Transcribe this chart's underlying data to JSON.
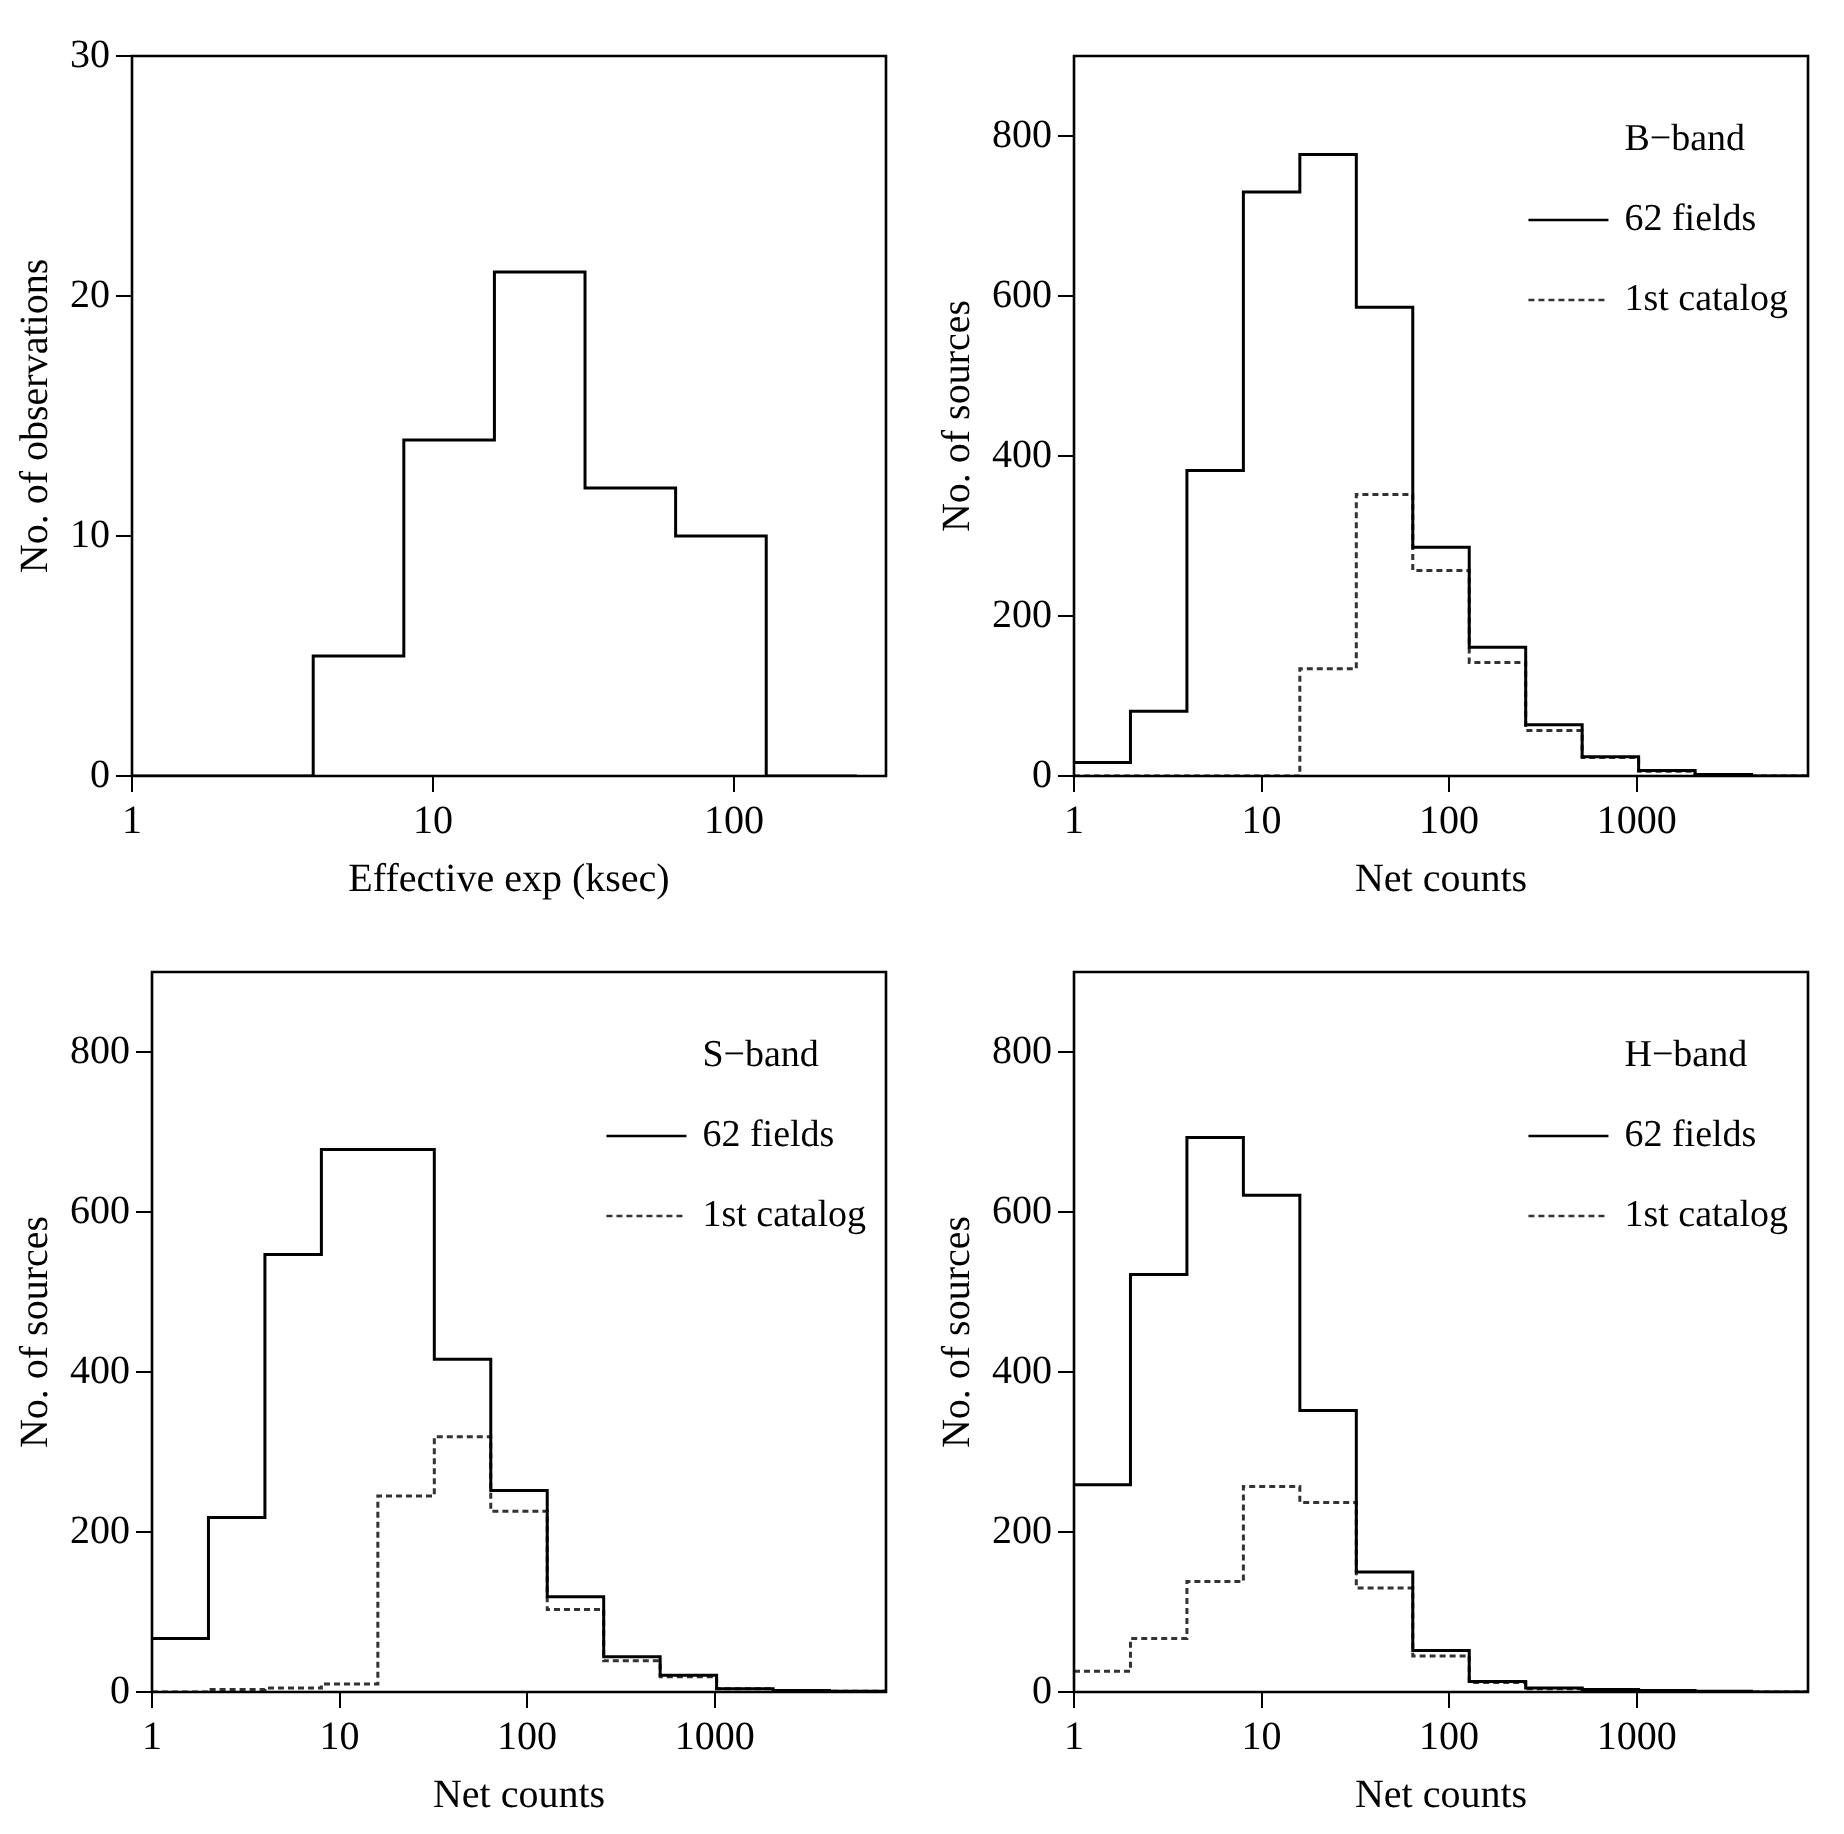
{
  "chart_data": [
    {
      "type": "histogram",
      "xlabel": "Effective exp (ksec)",
      "ylabel": "No. of observations",
      "log": "x",
      "xlim": [
        1,
        320
      ],
      "xticks": [
        1,
        10,
        100
      ],
      "ylim": [
        0,
        30
      ],
      "yticks": [
        0,
        10,
        20,
        30
      ],
      "bins": [
        1,
        2,
        4,
        8,
        16,
        32,
        64,
        128,
        256
      ],
      "values": [
        0,
        0,
        5,
        14,
        21,
        12,
        10,
        0
      ],
      "color": "#000000"
    },
    {
      "type": "histogram",
      "xlabel": "Net counts",
      "ylabel": "No. of sources",
      "log": "x",
      "xlim": [
        1,
        8192
      ],
      "xticks": [
        1,
        10,
        100,
        1000
      ],
      "ylim": [
        0,
        900
      ],
      "yticks": [
        0,
        200,
        400,
        600,
        800
      ],
      "legend": "top right",
      "legend_title": "B−band",
      "bins": [
        1,
        2,
        4,
        8,
        16,
        32,
        64,
        128,
        256,
        512,
        1024,
        2048,
        4096,
        8192
      ],
      "series": [
        {
          "name": "62 fields",
          "color": "#000000",
          "line_style": "solid",
          "values": [
            17,
            81,
            382,
            730,
            777,
            586,
            286,
            161,
            64,
            24,
            7,
            2,
            0
          ]
        },
        {
          "name": "1st catalog",
          "color": "#333333",
          "line_style": "dotted",
          "values": [
            0,
            0,
            0,
            0,
            134,
            352,
            257,
            142,
            57,
            23,
            6,
            2,
            0
          ]
        }
      ]
    },
    {
      "type": "histogram",
      "xlabel": "Net counts",
      "ylabel": "No. of sources",
      "log": "x",
      "xlim": [
        1,
        8192
      ],
      "xticks": [
        1,
        10,
        100,
        1000
      ],
      "ylim": [
        0,
        900
      ],
      "yticks": [
        0,
        200,
        400,
        600,
        800
      ],
      "legend": "top right",
      "legend_title": "S−band",
      "bins": [
        1,
        2,
        4,
        8,
        16,
        32,
        64,
        128,
        256,
        512,
        1024,
        2048,
        4096,
        8192
      ],
      "series": [
        {
          "name": "62 fields",
          "color": "#000000",
          "line_style": "solid",
          "values": [
            67,
            218,
            547,
            678,
            678,
            416,
            252,
            119,
            44,
            21,
            4,
            2,
            1
          ]
        },
        {
          "name": "1st catalog",
          "color": "#333333",
          "line_style": "dotted",
          "values": [
            0,
            3,
            5,
            10,
            245,
            319,
            226,
            103,
            39,
            19,
            4,
            2,
            1
          ]
        }
      ]
    },
    {
      "type": "histogram",
      "xlabel": "Net counts",
      "ylabel": "No. of sources",
      "log": "x",
      "xlim": [
        1,
        8192
      ],
      "xticks": [
        1,
        10,
        100,
        1000
      ],
      "ylim": [
        0,
        900
      ],
      "yticks": [
        0,
        200,
        400,
        600,
        800
      ],
      "legend": "top right",
      "legend_title": "H−band",
      "bins": [
        1,
        2,
        4,
        8,
        16,
        32,
        64,
        128,
        256,
        512,
        1024,
        2048,
        4096,
        8192
      ],
      "series": [
        {
          "name": "62 fields",
          "color": "#000000",
          "line_style": "solid",
          "values": [
            259,
            522,
            693,
            621,
            352,
            150,
            52,
            13,
            5,
            3,
            2,
            1,
            0
          ]
        },
        {
          "name": "1st catalog",
          "color": "#333333",
          "line_style": "dotted",
          "values": [
            26,
            67,
            138,
            257,
            237,
            130,
            45,
            12,
            4,
            2,
            1,
            0,
            0
          ]
        }
      ]
    }
  ]
}
